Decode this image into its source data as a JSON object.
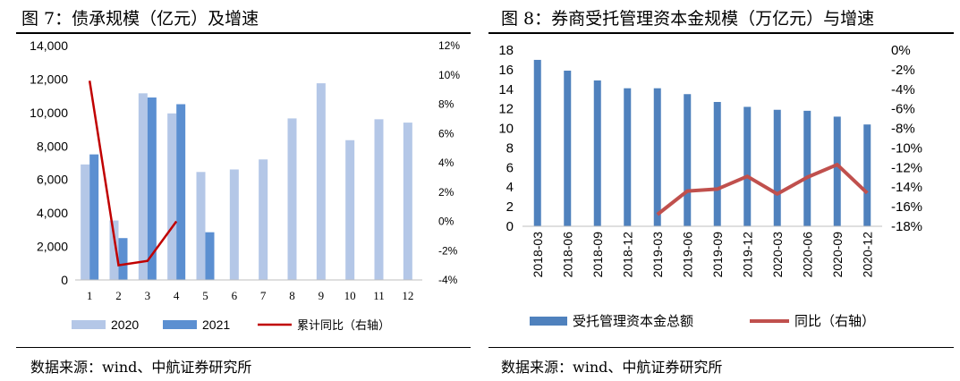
{
  "left": {
    "title": "图 7：债承规模（亿元）及增速",
    "source": "数据来源：wind、中航证券研究所",
    "colors": {
      "bar2020": "#b4c7e7",
      "bar2021": "#5b8fd1",
      "line": "#c00000"
    },
    "chart_data": {
      "type": "bar",
      "categories": [
        "1",
        "2",
        "3",
        "4",
        "5",
        "6",
        "7",
        "8",
        "9",
        "10",
        "11",
        "12"
      ],
      "series": [
        {
          "name": "2020",
          "type": "bar",
          "axis": "left",
          "values": [
            6900,
            3550,
            11150,
            9950,
            6450,
            6600,
            7200,
            9650,
            11750,
            8350,
            9600,
            9400
          ]
        },
        {
          "name": "2021",
          "type": "bar",
          "axis": "left",
          "values": [
            7500,
            2500,
            10900,
            10500,
            2850,
            null,
            null,
            null,
            null,
            null,
            null,
            null
          ]
        },
        {
          "name": "累计同比（右轴）",
          "type": "line",
          "axis": "right",
          "values": [
            9.6,
            -3.0,
            -2.7,
            0.0,
            null,
            null,
            null,
            null,
            null,
            null,
            null,
            null
          ]
        }
      ],
      "y_left": {
        "min": 0,
        "max": 14000,
        "ticks": [
          "0",
          "2,000",
          "4,000",
          "6,000",
          "8,000",
          "10,000",
          "12,000",
          "14,000"
        ]
      },
      "y_right": {
        "min": -4,
        "max": 12,
        "ticks": [
          "-4%",
          "-2%",
          "0%",
          "2%",
          "4%",
          "6%",
          "8%",
          "10%",
          "12%"
        ]
      },
      "legend": [
        "2020",
        "2021",
        "累计同比（右轴）"
      ],
      "legend_position": "bottom"
    }
  },
  "right": {
    "title": "图 8：券商受托管理资本金规模（万亿元）与增速",
    "source": "数据来源：wind、中航证券研究所",
    "colors": {
      "bar": "#4f81bd",
      "line": "#c0504d"
    },
    "chart_data": {
      "type": "bar",
      "categories": [
        "2018-03",
        "2018-06",
        "2018-09",
        "2018-12",
        "2019-03",
        "2019-06",
        "2019-09",
        "2019-12",
        "2020-03",
        "2020-06",
        "2020-09",
        "2020-12"
      ],
      "series": [
        {
          "name": "受托管理资本金总额",
          "type": "bar",
          "axis": "left",
          "values": [
            17.0,
            15.9,
            14.9,
            14.1,
            14.1,
            13.5,
            12.7,
            12.2,
            11.9,
            11.8,
            11.2,
            10.4
          ]
        },
        {
          "name": "同比（右轴）",
          "type": "line",
          "axis": "right",
          "values": [
            null,
            null,
            null,
            null,
            -16.8,
            -14.4,
            -14.2,
            -12.9,
            -14.7,
            -13.0,
            -11.7,
            -14.6
          ]
        }
      ],
      "y_left": {
        "min": 0,
        "max": 18,
        "ticks": [
          "0",
          "2",
          "4",
          "6",
          "8",
          "10",
          "12",
          "14",
          "16",
          "18"
        ]
      },
      "y_right": {
        "min": -18,
        "max": 0,
        "ticks": [
          "-18%",
          "-16%",
          "-14%",
          "-12%",
          "-10%",
          "-8%",
          "-6%",
          "-4%",
          "-2%",
          "0%"
        ]
      },
      "legend": [
        "受托管理资本金总额",
        "同比（右轴）"
      ],
      "legend_position": "bottom"
    }
  }
}
